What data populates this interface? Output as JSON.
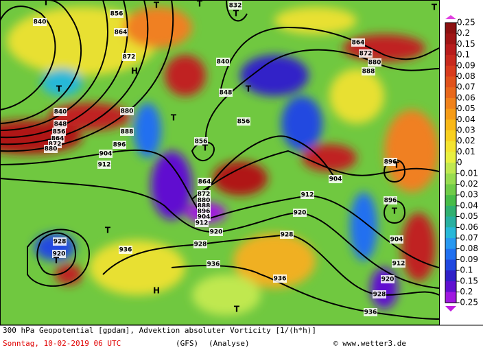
{
  "colorbar": {
    "ticks": [
      0.25,
      0.2,
      0.15,
      0.1,
      0.09,
      0.08,
      0.07,
      0.06,
      0.05,
      0.04,
      0.03,
      0.02,
      0.01,
      0,
      -0.01,
      -0.02,
      -0.03,
      -0.04,
      -0.05,
      -0.06,
      -0.07,
      -0.08,
      -0.09,
      -0.1,
      -0.15,
      -0.2,
      -0.25
    ],
    "colors": [
      "#8c1010",
      "#a01515",
      "#b81c1c",
      "#c82a1e",
      "#d83c1e",
      "#e0521c",
      "#e8681c",
      "#f0821c",
      "#f59c18",
      "#f8b818",
      "#f8d020",
      "#f4e430",
      "#e8f040",
      "#c0e850",
      "#98dc50",
      "#70cc48",
      "#48bc48",
      "#30b070",
      "#28b0a0",
      "#28b8d8",
      "#2898f0",
      "#2070f0",
      "#2048e0",
      "#3020c8",
      "#6010d0",
      "#a018e0"
    ]
  },
  "caption": {
    "title": "300 hPa Geopotential [gpdam], Advektion absoluter Vorticity [1/(h*h)]",
    "date": "Sonntag, 10-02-2019  06 UTC",
    "model": "(GFS)",
    "run": "(Analyse)",
    "credit": "© www.wetter3.de"
  },
  "map_labels": [
    "856",
    "864",
    "872",
    "840",
    "840",
    "848",
    "856",
    "832",
    "864",
    "872",
    "880",
    "888",
    "840",
    "848",
    "856",
    "864",
    "872",
    "880",
    "880",
    "888",
    "896",
    "904",
    "912",
    "856",
    "864",
    "872",
    "880",
    "888",
    "896",
    "904",
    "912",
    "920",
    "928",
    "936",
    "936",
    "936",
    "928",
    "920",
    "912",
    "904",
    "896",
    "896",
    "904",
    "912",
    "920",
    "928",
    "936",
    "928",
    "920",
    "T",
    "T",
    "T",
    "T",
    "T",
    "H",
    "T",
    "T",
    "T",
    "T",
    "T",
    "T",
    "T",
    "T",
    "H",
    "T"
  ]
}
